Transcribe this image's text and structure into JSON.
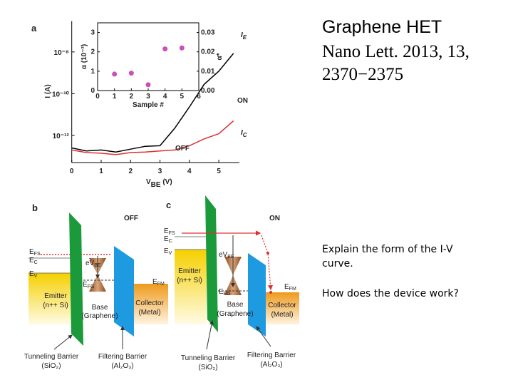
{
  "slide": {
    "title": "Graphene HET",
    "citation": [
      "Nano Lett. 2013, 13,",
      "2370−2375"
    ],
    "questions": [
      "Explain the form of the I-V",
      "curve.",
      "How does the device work?"
    ]
  },
  "chart_data": [
    {
      "type": "line",
      "panel": "a",
      "y_label": "I (A)",
      "x_label": [
        "V",
        "BE",
        " (V)"
      ],
      "yscale": "log",
      "x": [
        0,
        0.5,
        1,
        1.5,
        2,
        2.5,
        3,
        3.5,
        4,
        4.5,
        5,
        5.5
      ],
      "series": [
        {
          "name": "I",
          "name_sub": "E",
          "color": "#000000",
          "values": [
            2.5e-13,
            1.8e-13,
            2e-13,
            1.6e-13,
            2.2e-13,
            3e-13,
            3.2e-13,
            2.2e-12,
            2.3e-11,
            2.8e-10,
            1.2e-09,
            8.5e-09
          ]
        },
        {
          "name": "I",
          "name_sub": "C",
          "color": "#e03030",
          "values": [
            2e-13,
            1.5e-13,
            1.4e-13,
            1.2e-13,
            1.5e-13,
            1.6e-13,
            1.8e-13,
            2e-13,
            3.2e-13,
            6.8e-13,
            1.2e-12,
            5e-12
          ]
        }
      ],
      "annotations": [
        "ON",
        "OFF"
      ],
      "xlim": [
        0,
        5.7
      ],
      "xticks": [
        0,
        1,
        2,
        3,
        4,
        5
      ],
      "ylim": [
        5e-14,
        3e-07
      ],
      "yticks": [
        {
          "value": 1e-12,
          "label": "10⁻¹²"
        },
        {
          "value": 1e-10,
          "label": "10⁻¹⁰"
        },
        {
          "value": 1e-08,
          "label": "10⁻⁸"
        }
      ]
    },
    {
      "type": "scatter",
      "x_label": "Sample #",
      "y_label": "α (10⁻³)",
      "y2_label": "α*",
      "color": "#c850b8",
      "x": [
        1,
        2,
        3,
        4,
        5
      ],
      "values": [
        0.85,
        0.9,
        0.3,
        2.15,
        2.2
      ],
      "xlim": [
        0,
        6
      ],
      "xticks": [
        0,
        1,
        2,
        3,
        4,
        5,
        6
      ],
      "ylim": [
        0,
        3.5
      ],
      "yticks": [
        0,
        1,
        2,
        3
      ],
      "y2lim": [
        0,
        0.035
      ],
      "y2ticks": [
        {
          "value": 0,
          "label": "0.00"
        },
        0.01,
        0.02,
        0.03
      ]
    }
  ],
  "panels": [
    {
      "letter": "b",
      "state": "OFF",
      "efs": [
        "E",
        "FS"
      ],
      "ec": [
        "E",
        "C"
      ],
      "ev": [
        "E",
        "V"
      ],
      "evbe": [
        "eV",
        "BE"
      ],
      "efg": [
        "E",
        "FG"
      ],
      "efm": [
        "E",
        "FM"
      ],
      "emitter": [
        "Emitter",
        "(n++ Si)"
      ],
      "base": [
        "Base",
        "(Graphene)"
      ],
      "collector": [
        "Collector",
        "(Metal)"
      ],
      "tunneling": [
        "Tunneling Barrier",
        "(SiO₂)"
      ],
      "filtering": [
        "Filtering Barrier",
        "(Al₂O₃)"
      ]
    },
    {
      "letter": "c",
      "state": "ON",
      "efs": [
        "E",
        "FS"
      ],
      "ec": [
        "E",
        "C"
      ],
      "ev": [
        "E",
        "V"
      ],
      "evbe": [
        "eV",
        "BE"
      ],
      "efg": [
        "E",
        "FG"
      ],
      "efm": [
        "E",
        "FM"
      ],
      "emitter": [
        "Emitter",
        "(n++ Si)"
      ],
      "base": [
        "Base",
        "(Graphene)"
      ],
      "collector": [
        "Collector",
        "(Metal)"
      ],
      "tunneling": [
        "Tunneling Barrier",
        "(SiO₂)"
      ],
      "filtering": [
        "Filtering Barrier",
        "(Al₂O₃)"
      ]
    }
  ]
}
